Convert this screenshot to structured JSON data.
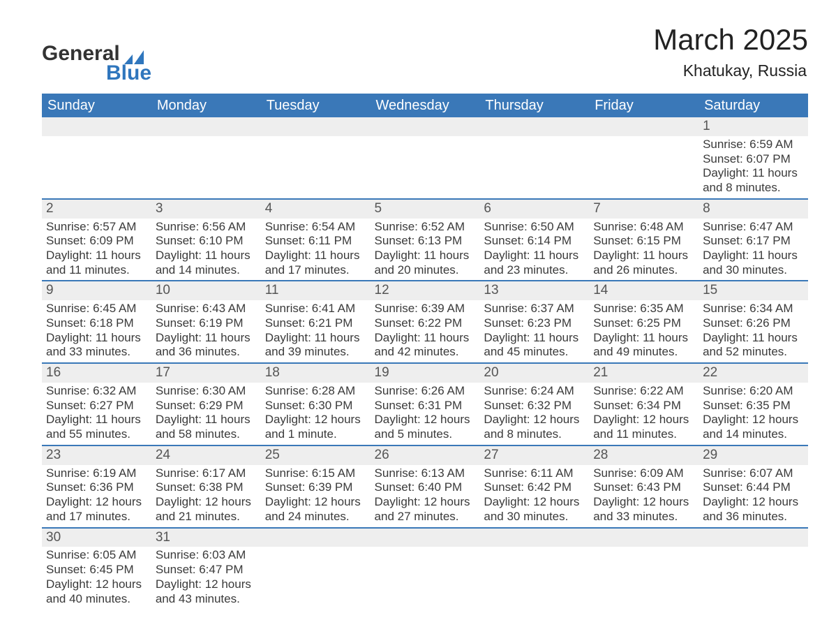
{
  "brand": {
    "word1": "General",
    "word2": "Blue"
  },
  "title": "March 2025",
  "subtitle": "Khatukay, Russia",
  "colors": {
    "header_bg": "#3a78b8",
    "row_stripe": "#eeeeee",
    "cell_border": "#3a78b8",
    "text": "#3a3a3a",
    "logo_dark": "#333333",
    "logo_blue": "#2f76bd",
    "background": "#ffffff"
  },
  "typography": {
    "title_fontsize": 42,
    "subtitle_fontsize": 23,
    "header_fontsize": 20,
    "daynum_fontsize": 19,
    "detail_fontsize": 17,
    "font_family": "Arial"
  },
  "layout": {
    "columns": 7,
    "rows": 6,
    "col_width_pct": 14.28
  },
  "weekdays": [
    "Sunday",
    "Monday",
    "Tuesday",
    "Wednesday",
    "Thursday",
    "Friday",
    "Saturday"
  ],
  "weeks": [
    [
      null,
      null,
      null,
      null,
      null,
      null,
      {
        "day": "1",
        "sunrise": "Sunrise: 6:59 AM",
        "sunset": "Sunset: 6:07 PM",
        "daylight": "Daylight: 11 hours and 8 minutes."
      }
    ],
    [
      {
        "day": "2",
        "sunrise": "Sunrise: 6:57 AM",
        "sunset": "Sunset: 6:09 PM",
        "daylight": "Daylight: 11 hours and 11 minutes."
      },
      {
        "day": "3",
        "sunrise": "Sunrise: 6:56 AM",
        "sunset": "Sunset: 6:10 PM",
        "daylight": "Daylight: 11 hours and 14 minutes."
      },
      {
        "day": "4",
        "sunrise": "Sunrise: 6:54 AM",
        "sunset": "Sunset: 6:11 PM",
        "daylight": "Daylight: 11 hours and 17 minutes."
      },
      {
        "day": "5",
        "sunrise": "Sunrise: 6:52 AM",
        "sunset": "Sunset: 6:13 PM",
        "daylight": "Daylight: 11 hours and 20 minutes."
      },
      {
        "day": "6",
        "sunrise": "Sunrise: 6:50 AM",
        "sunset": "Sunset: 6:14 PM",
        "daylight": "Daylight: 11 hours and 23 minutes."
      },
      {
        "day": "7",
        "sunrise": "Sunrise: 6:48 AM",
        "sunset": "Sunset: 6:15 PM",
        "daylight": "Daylight: 11 hours and 26 minutes."
      },
      {
        "day": "8",
        "sunrise": "Sunrise: 6:47 AM",
        "sunset": "Sunset: 6:17 PM",
        "daylight": "Daylight: 11 hours and 30 minutes."
      }
    ],
    [
      {
        "day": "9",
        "sunrise": "Sunrise: 6:45 AM",
        "sunset": "Sunset: 6:18 PM",
        "daylight": "Daylight: 11 hours and 33 minutes."
      },
      {
        "day": "10",
        "sunrise": "Sunrise: 6:43 AM",
        "sunset": "Sunset: 6:19 PM",
        "daylight": "Daylight: 11 hours and 36 minutes."
      },
      {
        "day": "11",
        "sunrise": "Sunrise: 6:41 AM",
        "sunset": "Sunset: 6:21 PM",
        "daylight": "Daylight: 11 hours and 39 minutes."
      },
      {
        "day": "12",
        "sunrise": "Sunrise: 6:39 AM",
        "sunset": "Sunset: 6:22 PM",
        "daylight": "Daylight: 11 hours and 42 minutes."
      },
      {
        "day": "13",
        "sunrise": "Sunrise: 6:37 AM",
        "sunset": "Sunset: 6:23 PM",
        "daylight": "Daylight: 11 hours and 45 minutes."
      },
      {
        "day": "14",
        "sunrise": "Sunrise: 6:35 AM",
        "sunset": "Sunset: 6:25 PM",
        "daylight": "Daylight: 11 hours and 49 minutes."
      },
      {
        "day": "15",
        "sunrise": "Sunrise: 6:34 AM",
        "sunset": "Sunset: 6:26 PM",
        "daylight": "Daylight: 11 hours and 52 minutes."
      }
    ],
    [
      {
        "day": "16",
        "sunrise": "Sunrise: 6:32 AM",
        "sunset": "Sunset: 6:27 PM",
        "daylight": "Daylight: 11 hours and 55 minutes."
      },
      {
        "day": "17",
        "sunrise": "Sunrise: 6:30 AM",
        "sunset": "Sunset: 6:29 PM",
        "daylight": "Daylight: 11 hours and 58 minutes."
      },
      {
        "day": "18",
        "sunrise": "Sunrise: 6:28 AM",
        "sunset": "Sunset: 6:30 PM",
        "daylight": "Daylight: 12 hours and 1 minute."
      },
      {
        "day": "19",
        "sunrise": "Sunrise: 6:26 AM",
        "sunset": "Sunset: 6:31 PM",
        "daylight": "Daylight: 12 hours and 5 minutes."
      },
      {
        "day": "20",
        "sunrise": "Sunrise: 6:24 AM",
        "sunset": "Sunset: 6:32 PM",
        "daylight": "Daylight: 12 hours and 8 minutes."
      },
      {
        "day": "21",
        "sunrise": "Sunrise: 6:22 AM",
        "sunset": "Sunset: 6:34 PM",
        "daylight": "Daylight: 12 hours and 11 minutes."
      },
      {
        "day": "22",
        "sunrise": "Sunrise: 6:20 AM",
        "sunset": "Sunset: 6:35 PM",
        "daylight": "Daylight: 12 hours and 14 minutes."
      }
    ],
    [
      {
        "day": "23",
        "sunrise": "Sunrise: 6:19 AM",
        "sunset": "Sunset: 6:36 PM",
        "daylight": "Daylight: 12 hours and 17 minutes."
      },
      {
        "day": "24",
        "sunrise": "Sunrise: 6:17 AM",
        "sunset": "Sunset: 6:38 PM",
        "daylight": "Daylight: 12 hours and 21 minutes."
      },
      {
        "day": "25",
        "sunrise": "Sunrise: 6:15 AM",
        "sunset": "Sunset: 6:39 PM",
        "daylight": "Daylight: 12 hours and 24 minutes."
      },
      {
        "day": "26",
        "sunrise": "Sunrise: 6:13 AM",
        "sunset": "Sunset: 6:40 PM",
        "daylight": "Daylight: 12 hours and 27 minutes."
      },
      {
        "day": "27",
        "sunrise": "Sunrise: 6:11 AM",
        "sunset": "Sunset: 6:42 PM",
        "daylight": "Daylight: 12 hours and 30 minutes."
      },
      {
        "day": "28",
        "sunrise": "Sunrise: 6:09 AM",
        "sunset": "Sunset: 6:43 PM",
        "daylight": "Daylight: 12 hours and 33 minutes."
      },
      {
        "day": "29",
        "sunrise": "Sunrise: 6:07 AM",
        "sunset": "Sunset: 6:44 PM",
        "daylight": "Daylight: 12 hours and 36 minutes."
      }
    ],
    [
      {
        "day": "30",
        "sunrise": "Sunrise: 6:05 AM",
        "sunset": "Sunset: 6:45 PM",
        "daylight": "Daylight: 12 hours and 40 minutes."
      },
      {
        "day": "31",
        "sunrise": "Sunrise: 6:03 AM",
        "sunset": "Sunset: 6:47 PM",
        "daylight": "Daylight: 12 hours and 43 minutes."
      },
      null,
      null,
      null,
      null,
      null
    ]
  ]
}
